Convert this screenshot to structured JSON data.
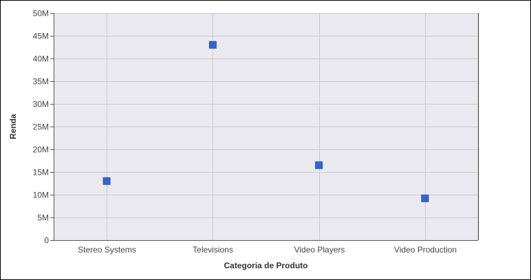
{
  "chart_data": {
    "type": "scatter",
    "title": "",
    "xlabel": "Categoria de Produto",
    "ylabel": "Renda",
    "categories": [
      "Stereo Systems",
      "Televisions",
      "Video Players",
      "Video Production"
    ],
    "series": [
      {
        "values": [
          13000000,
          43000000,
          16500000,
          9200000
        ]
      }
    ],
    "ylim": [
      0,
      50000000
    ],
    "y_ticks": [
      0,
      5000000,
      10000000,
      15000000,
      20000000,
      25000000,
      30000000,
      35000000,
      40000000,
      45000000,
      50000000
    ],
    "y_tick_labels": [
      "0",
      "5M",
      "10M",
      "15M",
      "20M",
      "25M",
      "30M",
      "35M",
      "40M",
      "45M",
      "50M"
    ],
    "grid": true,
    "legend": "none",
    "colors": {
      "marker": "#3366cc",
      "plot_background": "#ebe9f0",
      "grid": "#c8c8cc",
      "axis": "#555555"
    },
    "marker_shape": "square"
  }
}
